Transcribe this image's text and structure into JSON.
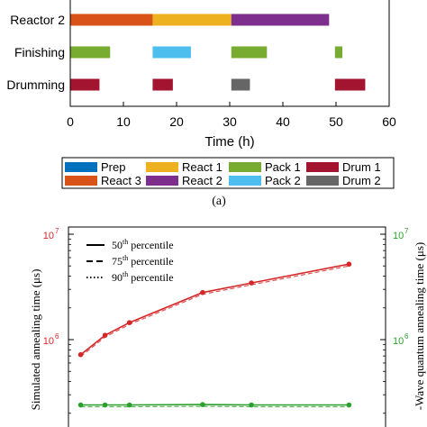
{
  "chart_data": [
    {
      "type": "gantt",
      "title": "",
      "xlabel": "Time (h)",
      "ylabel": "",
      "xlim": [
        0,
        60
      ],
      "xticks": [
        0,
        10,
        20,
        30,
        40,
        50,
        60
      ],
      "rows": [
        "Reactor 2",
        "Finishing",
        "Drumming"
      ],
      "tasks": [
        {
          "row": "Reactor 2",
          "name": "React 3",
          "start": 0,
          "end": 15.5,
          "color": "#d95319"
        },
        {
          "row": "Reactor 2",
          "name": "React 1",
          "start": 15.5,
          "end": 30.3,
          "color": "#edb120"
        },
        {
          "row": "Reactor 2",
          "name": "React 2",
          "start": 30.3,
          "end": 48.7,
          "color": "#7e2f8e"
        },
        {
          "row": "Finishing",
          "name": "Pack 1",
          "start": 0,
          "end": 7.5,
          "color": "#77ac30"
        },
        {
          "row": "Finishing",
          "name": "Pack 2",
          "start": 15.5,
          "end": 22.7,
          "color": "#4dbeee"
        },
        {
          "row": "Finishing",
          "name": "Pack 1",
          "start": 30.3,
          "end": 37.0,
          "color": "#77ac30"
        },
        {
          "row": "Finishing",
          "name": "Pack 1",
          "start": 49.8,
          "end": 51.2,
          "color": "#77ac30"
        },
        {
          "row": "Drumming",
          "name": "Drum 1",
          "start": 0,
          "end": 5.5,
          "color": "#a2142f"
        },
        {
          "row": "Drumming",
          "name": "Drum 1",
          "start": 15.5,
          "end": 19.3,
          "color": "#a2142f"
        },
        {
          "row": "Drumming",
          "name": "Drum 2",
          "start": 30.3,
          "end": 33.8,
          "color": "#666666"
        },
        {
          "row": "Drumming",
          "name": "Drum 1",
          "start": 49.8,
          "end": 55.5,
          "color": "#a2142f"
        }
      ],
      "legend": [
        {
          "name": "Prep",
          "color": "#0072bd"
        },
        {
          "name": "React 1",
          "color": "#edb120"
        },
        {
          "name": "Pack 1",
          "color": "#77ac30"
        },
        {
          "name": "Drum 1",
          "color": "#a2142f"
        },
        {
          "name": "React 3",
          "color": "#d95319"
        },
        {
          "name": "React 2",
          "color": "#7e2f8e"
        },
        {
          "name": "Pack 2",
          "color": "#4dbeee"
        },
        {
          "name": "Drum 2",
          "color": "#666666"
        }
      ],
      "legend_placement": "bottom",
      "caption": "(a)"
    },
    {
      "type": "line",
      "title": "",
      "ylabel_left": "Simulated annealing time (μs)",
      "ylabel_right": "-Wave quantum annealing time (μs)",
      "yscale": "log",
      "left_tick_labels": [
        "10",
        "10"
      ],
      "left_tick_exponents": [
        "7",
        "6"
      ],
      "right_tick_labels": [
        "10",
        "10"
      ],
      "right_tick_exponents": [
        "7",
        "6"
      ],
      "left_color": "#d62728",
      "right_color": "#2ca02c",
      "grid": false,
      "legend": [
        {
          "base": "50",
          "sup": "th",
          "rest": " percentile",
          "style": "solid"
        },
        {
          "base": "75",
          "sup": "th",
          "rest": " percentile",
          "style": "dashed"
        },
        {
          "base": "90",
          "sup": "th",
          "rest": " percentile",
          "style": "dotted"
        }
      ],
      "legend_placement": "top-left",
      "x": [
        1,
        2,
        3,
        6,
        8,
        12
      ],
      "series": [
        {
          "axis": "left",
          "color": "#d62728",
          "values": [
            720000,
            1100000,
            1450000,
            2800000,
            3450000,
            5200000
          ]
        },
        {
          "axis": "right",
          "color": "#2ca02c",
          "values": [
            240000,
            240000,
            240000,
            242000,
            240000,
            240000
          ]
        }
      ]
    }
  ]
}
